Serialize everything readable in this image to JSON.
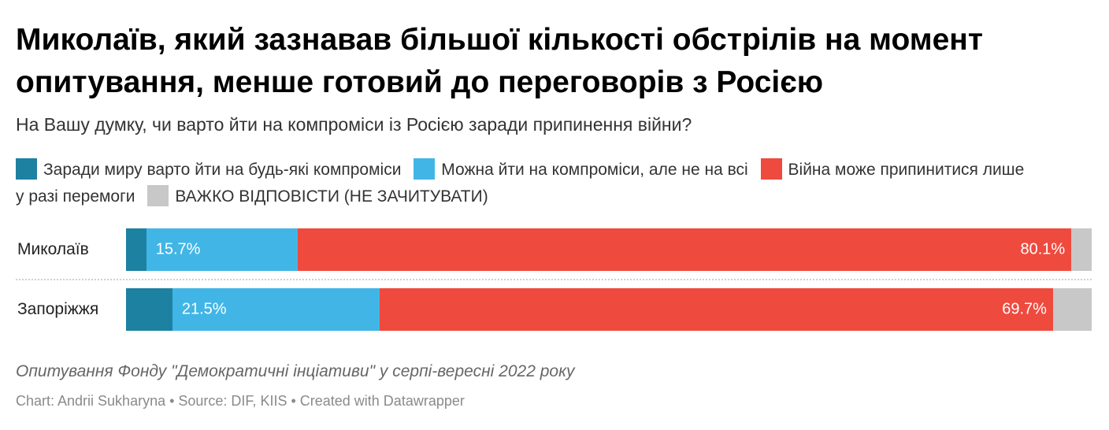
{
  "title": "Миколаїв, який зазнавав більшої кількості обстрілів на момент опитування, менше готовий до переговорів з Росією",
  "subtitle": "На Вашу думку, чи варто йти на компроміси із Росією заради припинення війни?",
  "notes": "Опитування Фонду \"Демократичні інціативи\" у серпі-вересні 2022 року",
  "footer": "Chart: Andrii Sukharyna • Source: DIF, KIIS • Created with Datawrapper",
  "chart_data": {
    "type": "bar",
    "orientation": "horizontal",
    "stacked": true,
    "categories": [
      "Миколаїв",
      "Запоріжжя"
    ],
    "series": [
      {
        "name": "Заради миру варто йти на будь-які компроміси",
        "color": "#1d81a2",
        "values": [
          2.1,
          4.8
        ],
        "labels": [
          "",
          ""
        ]
      },
      {
        "name": "Можна йти на компроміси, але не на всі",
        "color": "#41b6e6",
        "values": [
          15.7,
          21.5
        ],
        "labels": [
          "15.7%",
          "21.5%"
        ]
      },
      {
        "name": "Війна може припинитися лише у разі перемоги",
        "color": "#ef4a3e",
        "values": [
          80.1,
          69.7
        ],
        "labels": [
          "80.1%",
          "69.7%"
        ]
      },
      {
        "name": "ВАЖКО ВІДПОВІСТИ (НЕ ЗАЧИТУВАТИ)",
        "color": "#c8c8c8",
        "values": [
          2.1,
          4.0
        ],
        "labels": [
          "",
          ""
        ]
      }
    ],
    "xlim": [
      0,
      100
    ],
    "legend": "top"
  }
}
